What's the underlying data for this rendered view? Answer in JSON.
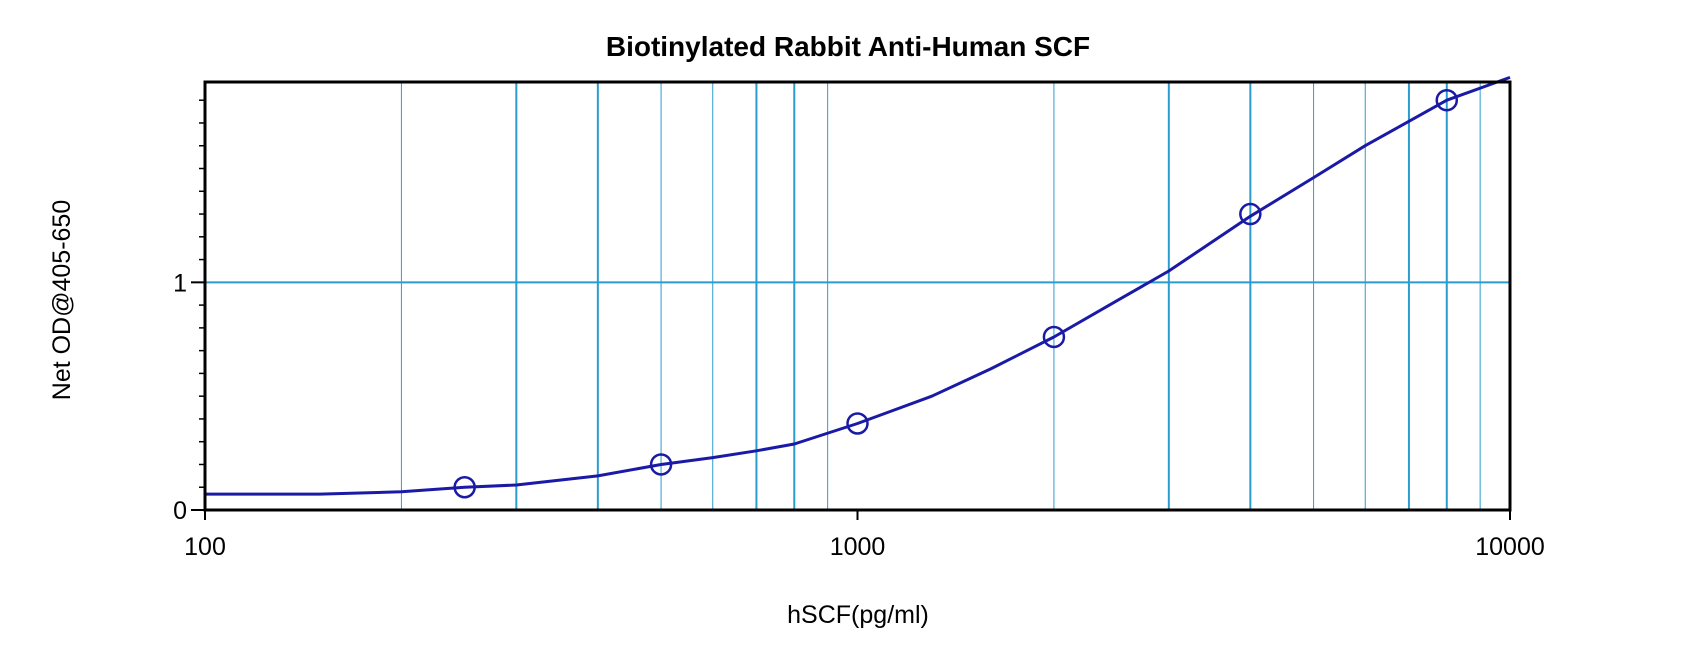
{
  "chart_data": {
    "type": "line",
    "title": "Biotinylated Rabbit Anti-Human SCF",
    "xlabel": "hSCF(pg/ml)",
    "ylabel": "Net OD@405-650",
    "x_scale": "log",
    "xlim": [
      100,
      10000
    ],
    "ylim": [
      0,
      1.88
    ],
    "x_tick_labels": [
      "100",
      "1000",
      "10000"
    ],
    "x_tick_values": [
      100,
      1000,
      10000
    ],
    "y_tick_labels": [
      "0",
      "1"
    ],
    "y_tick_values": [
      0,
      1
    ],
    "grid": true,
    "series": [
      {
        "kind": "points",
        "x": [
          250,
          500,
          1000,
          2000,
          4000,
          8000
        ],
        "y": [
          0.1,
          0.2,
          0.38,
          0.76,
          1.3,
          1.8
        ]
      },
      {
        "kind": "fit-curve",
        "x": [
          100,
          150,
          200,
          250,
          300,
          400,
          500,
          600,
          700,
          800,
          1000,
          1300,
          1600,
          2000,
          2500,
          3000,
          4000,
          5000,
          6000,
          8000,
          10000
        ],
        "y": [
          0.07,
          0.07,
          0.08,
          0.1,
          0.11,
          0.15,
          0.2,
          0.23,
          0.26,
          0.29,
          0.38,
          0.5,
          0.62,
          0.76,
          0.92,
          1.05,
          1.29,
          1.46,
          1.6,
          1.8,
          1.9
        ]
      }
    ],
    "colors": {
      "series": "#1a1aa6",
      "grid": "#2b9ccf",
      "frame": "#000000"
    }
  }
}
